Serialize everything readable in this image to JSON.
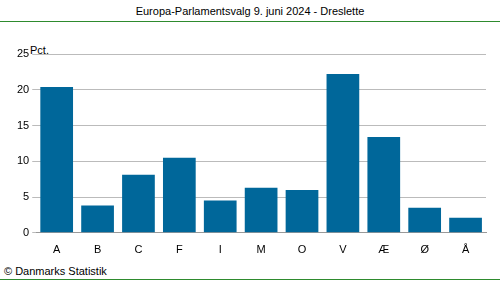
{
  "chart_data": {
    "type": "bar",
    "title": "Europa-Parlamentsvalg 9. juni 2024 - Dreslette",
    "ylabel": "Pct.",
    "source": "© Danmarks Statistik",
    "categories": [
      "A",
      "B",
      "C",
      "F",
      "I",
      "M",
      "O",
      "V",
      "Æ",
      "Ø",
      "Å"
    ],
    "values": [
      20.4,
      3.8,
      8.1,
      10.5,
      4.5,
      6.3,
      6.0,
      22.2,
      13.4,
      3.5,
      2.1
    ],
    "color": "#00679a",
    "ylim": [
      0,
      25
    ],
    "yticks": [
      0,
      5,
      10,
      15,
      20,
      25
    ],
    "grid": true
  }
}
